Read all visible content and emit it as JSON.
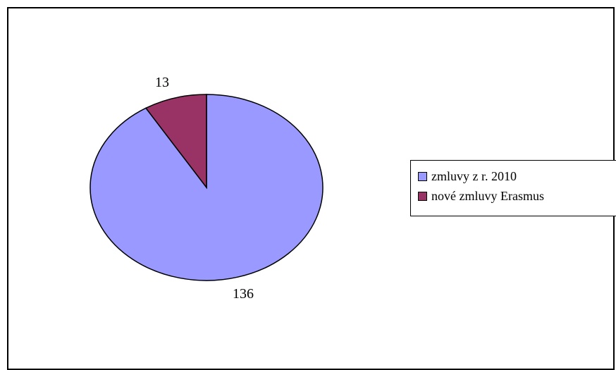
{
  "chart_data": {
    "type": "pie",
    "categories": [
      "zmluvy z r. 2010",
      "nové zmluvy Erasmus"
    ],
    "values": [
      136,
      13
    ],
    "colors": [
      "#9999ff",
      "#993366"
    ],
    "data_labels": [
      "136",
      "13"
    ],
    "legend_position": "right"
  }
}
